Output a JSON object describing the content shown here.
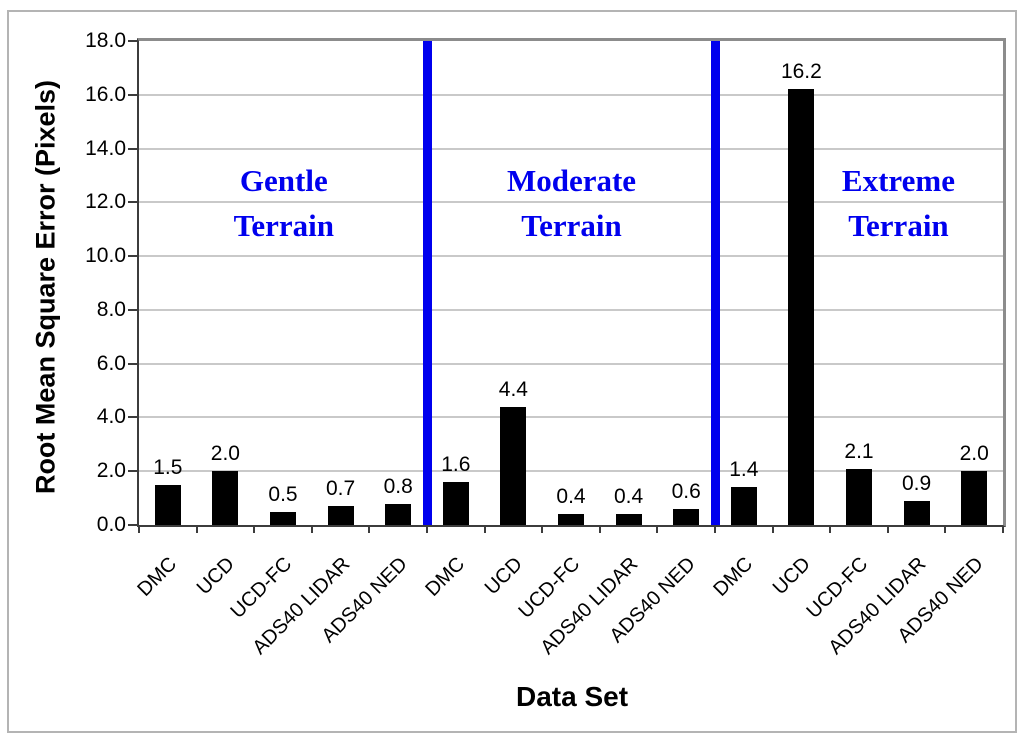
{
  "chart_data": {
    "type": "bar",
    "title": "",
    "ylabel": "Root Mean Square Error (Pixels)",
    "xlabel": "Data Set",
    "ylim": [
      0,
      18
    ],
    "ytick_labels": [
      "0.0",
      "2.0",
      "4.0",
      "6.0",
      "8.0",
      "10.0",
      "12.0",
      "14.0",
      "16.0",
      "18.0"
    ],
    "grid": true,
    "legend": false,
    "bar_color": "#000000",
    "separator_color": "#0000ee",
    "section_label_color": "#0000ee",
    "sections": [
      {
        "name": "Gentle Terrain",
        "label_lines": [
          "Gentle",
          "Terrain"
        ],
        "categories": [
          "DMC",
          "UCD",
          "UCD-FC",
          "ADS40 LIDAR",
          "ADS40 NED"
        ],
        "values": [
          1.5,
          2.0,
          0.5,
          0.7,
          0.8
        ],
        "value_labels": [
          "1.5",
          "2.0",
          "0.5",
          "0.7",
          "0.8"
        ]
      },
      {
        "name": "Moderate Terrain",
        "label_lines": [
          "Moderate",
          "Terrain"
        ],
        "categories": [
          "DMC",
          "UCD",
          "UCD-FC",
          "ADS40 LIDAR",
          "ADS40 NED"
        ],
        "values": [
          1.6,
          4.4,
          0.4,
          0.4,
          0.6
        ],
        "value_labels": [
          "1.6",
          "4.4",
          "0.4",
          "0.4",
          "0.6"
        ]
      },
      {
        "name": "Extreme Terrain",
        "label_lines": [
          "Extreme",
          "Terrain"
        ],
        "categories": [
          "DMC",
          "UCD",
          "UCD-FC",
          "ADS40 LIDAR",
          "ADS40 NED"
        ],
        "values": [
          1.4,
          16.2,
          2.1,
          0.9,
          2.0
        ],
        "value_labels": [
          "1.4",
          "16.2",
          "2.1",
          "0.9",
          "2.0"
        ]
      }
    ]
  }
}
